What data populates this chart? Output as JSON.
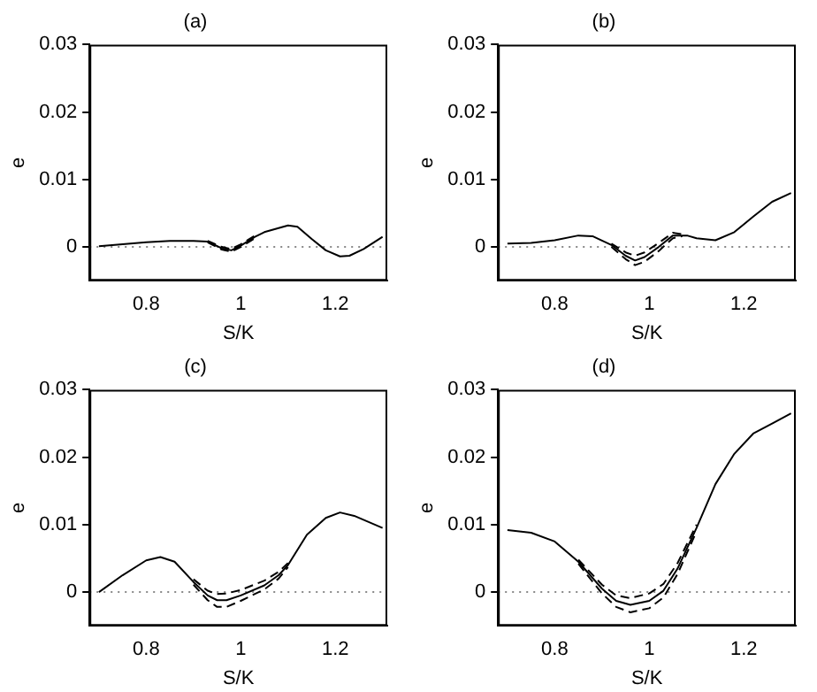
{
  "chart_data": [
    {
      "type": "line",
      "title": "(a)",
      "xlabel": "S/K",
      "ylabel": "e",
      "xlim": [
        0.68,
        1.31
      ],
      "ylim": [
        -0.005,
        0.03
      ],
      "xticks": [
        0.8,
        1,
        1.2
      ],
      "yticks": [
        0,
        0.01,
        0.02,
        0.03
      ],
      "grid": false,
      "legend": false,
      "ref_lines": [
        {
          "axis": "y",
          "value": 0,
          "line_style": "dotted",
          "color": "#888888"
        }
      ],
      "series": [
        {
          "color": "#000000",
          "line_style": "solid",
          "x": [
            0.7,
            0.75,
            0.8,
            0.85,
            0.9,
            0.93,
            0.96,
            0.98,
            1.0,
            1.03,
            1.05,
            1.08,
            1.1,
            1.12,
            1.15,
            1.18,
            1.21,
            1.23,
            1.26,
            1.3
          ],
          "values": [
            0.0001,
            0.0004,
            0.0007,
            0.0009,
            0.0009,
            0.0008,
            -0.0002,
            -0.0005,
            0.0002,
            0.0015,
            0.0022,
            0.0028,
            0.0032,
            0.003,
            0.0012,
            -0.0005,
            -0.0014,
            -0.0013,
            -0.0003,
            0.0015
          ]
        },
        {
          "color": "#000000",
          "line_style": "dashed",
          "x": [
            0.93,
            0.96,
            0.98,
            1.0,
            1.03
          ],
          "values": [
            0.0007,
            -0.0004,
            -0.0007,
            0.0,
            0.0013
          ]
        },
        {
          "color": "#000000",
          "line_style": "dashed",
          "x": [
            0.93,
            0.96,
            0.98,
            1.0,
            1.03
          ],
          "values": [
            0.0009,
            0.0,
            -0.0003,
            0.0004,
            0.0017
          ]
        }
      ]
    },
    {
      "type": "line",
      "title": "(b)",
      "xlabel": "S/K",
      "ylabel": "e",
      "xlim": [
        0.68,
        1.31
      ],
      "ylim": [
        -0.005,
        0.03
      ],
      "xticks": [
        0.8,
        1,
        1.2
      ],
      "yticks": [
        0,
        0.01,
        0.02,
        0.03
      ],
      "grid": false,
      "legend": false,
      "ref_lines": [
        {
          "axis": "y",
          "value": 0,
          "line_style": "dotted",
          "color": "#888888"
        }
      ],
      "series": [
        {
          "color": "#000000",
          "line_style": "solid",
          "x": [
            0.7,
            0.75,
            0.8,
            0.85,
            0.88,
            0.92,
            0.95,
            0.97,
            0.99,
            1.02,
            1.05,
            1.08,
            1.1,
            1.14,
            1.18,
            1.22,
            1.26,
            1.3
          ],
          "values": [
            0.0005,
            0.0006,
            0.001,
            0.0017,
            0.0016,
            0.0003,
            -0.0013,
            -0.002,
            -0.0015,
            0.0,
            0.0017,
            0.0017,
            0.0013,
            0.001,
            0.0022,
            0.0045,
            0.0067,
            0.008
          ]
        },
        {
          "color": "#000000",
          "line_style": "dashed",
          "x": [
            0.92,
            0.95,
            0.97,
            0.99,
            1.02,
            1.05,
            1.07
          ],
          "values": [
            0.0,
            -0.0018,
            -0.0027,
            -0.0022,
            -0.0006,
            0.0013,
            0.0016
          ]
        },
        {
          "color": "#000000",
          "line_style": "dashed",
          "x": [
            0.92,
            0.95,
            0.97,
            0.99,
            1.02,
            1.05,
            1.07
          ],
          "values": [
            0.0005,
            -0.0008,
            -0.0013,
            -0.0008,
            0.0006,
            0.0021,
            0.0019
          ]
        }
      ]
    },
    {
      "type": "line",
      "title": "(c)",
      "xlabel": "S/K",
      "ylabel": "e",
      "xlim": [
        0.68,
        1.31
      ],
      "ylim": [
        -0.005,
        0.03
      ],
      "xticks": [
        0.8,
        1,
        1.2
      ],
      "yticks": [
        0,
        0.01,
        0.02,
        0.03
      ],
      "grid": false,
      "legend": false,
      "ref_lines": [
        {
          "axis": "y",
          "value": 0,
          "line_style": "dotted",
          "color": "#888888"
        }
      ],
      "series": [
        {
          "color": "#000000",
          "line_style": "solid",
          "x": [
            0.7,
            0.75,
            0.8,
            0.83,
            0.86,
            0.9,
            0.93,
            0.95,
            0.97,
            1.0,
            1.05,
            1.08,
            1.1,
            1.14,
            1.18,
            1.21,
            1.24,
            1.3
          ],
          "values": [
            0.0,
            0.0025,
            0.0047,
            0.0052,
            0.0045,
            0.0015,
            -0.0005,
            -0.0012,
            -0.0012,
            -0.0005,
            0.001,
            0.0025,
            0.004,
            0.0085,
            0.011,
            0.0118,
            0.0113,
            0.0095
          ]
        },
        {
          "color": "#000000",
          "line_style": "dashed",
          "x": [
            0.9,
            0.93,
            0.95,
            0.97,
            1.0,
            1.05,
            1.08,
            1.1
          ],
          "values": [
            0.0011,
            -0.0012,
            -0.0022,
            -0.0022,
            -0.0013,
            0.0004,
            0.002,
            0.0037
          ]
        },
        {
          "color": "#000000",
          "line_style": "dashed",
          "x": [
            0.9,
            0.93,
            0.95,
            0.97,
            1.0,
            1.05,
            1.08,
            1.1
          ],
          "values": [
            0.0019,
            0.0002,
            -0.0003,
            -0.0002,
            0.0003,
            0.0017,
            0.003,
            0.0043
          ]
        }
      ]
    },
    {
      "type": "line",
      "title": "(d)",
      "xlabel": "S/K",
      "ylabel": "e",
      "xlim": [
        0.68,
        1.31
      ],
      "ylim": [
        -0.005,
        0.03
      ],
      "xticks": [
        0.8,
        1,
        1.2
      ],
      "yticks": [
        0,
        0.01,
        0.02,
        0.03
      ],
      "grid": false,
      "legend": false,
      "ref_lines": [
        {
          "axis": "y",
          "value": 0,
          "line_style": "dotted",
          "color": "#888888"
        }
      ],
      "series": [
        {
          "color": "#000000",
          "line_style": "solid",
          "x": [
            0.7,
            0.75,
            0.8,
            0.85,
            0.9,
            0.93,
            0.96,
            1.0,
            1.03,
            1.06,
            1.1,
            1.14,
            1.18,
            1.22,
            1.26,
            1.3
          ],
          "values": [
            0.0092,
            0.0088,
            0.0075,
            0.0045,
            0.0005,
            -0.0013,
            -0.0019,
            -0.0013,
            0.0002,
            0.0035,
            0.0095,
            0.016,
            0.0205,
            0.0235,
            0.025,
            0.0265
          ]
        },
        {
          "color": "#000000",
          "line_style": "dashed",
          "x": [
            0.85,
            0.9,
            0.93,
            0.96,
            1.0,
            1.03,
            1.06,
            1.1
          ],
          "values": [
            0.0042,
            -0.0002,
            -0.0022,
            -0.003,
            -0.0024,
            -0.0008,
            0.0027,
            0.009
          ]
        },
        {
          "color": "#000000",
          "line_style": "dashed",
          "x": [
            0.85,
            0.9,
            0.93,
            0.96,
            1.0,
            1.03,
            1.06,
            1.1
          ],
          "values": [
            0.0048,
            0.0011,
            -0.0005,
            -0.0009,
            -0.0002,
            0.0012,
            0.0043,
            0.01
          ]
        }
      ]
    }
  ]
}
